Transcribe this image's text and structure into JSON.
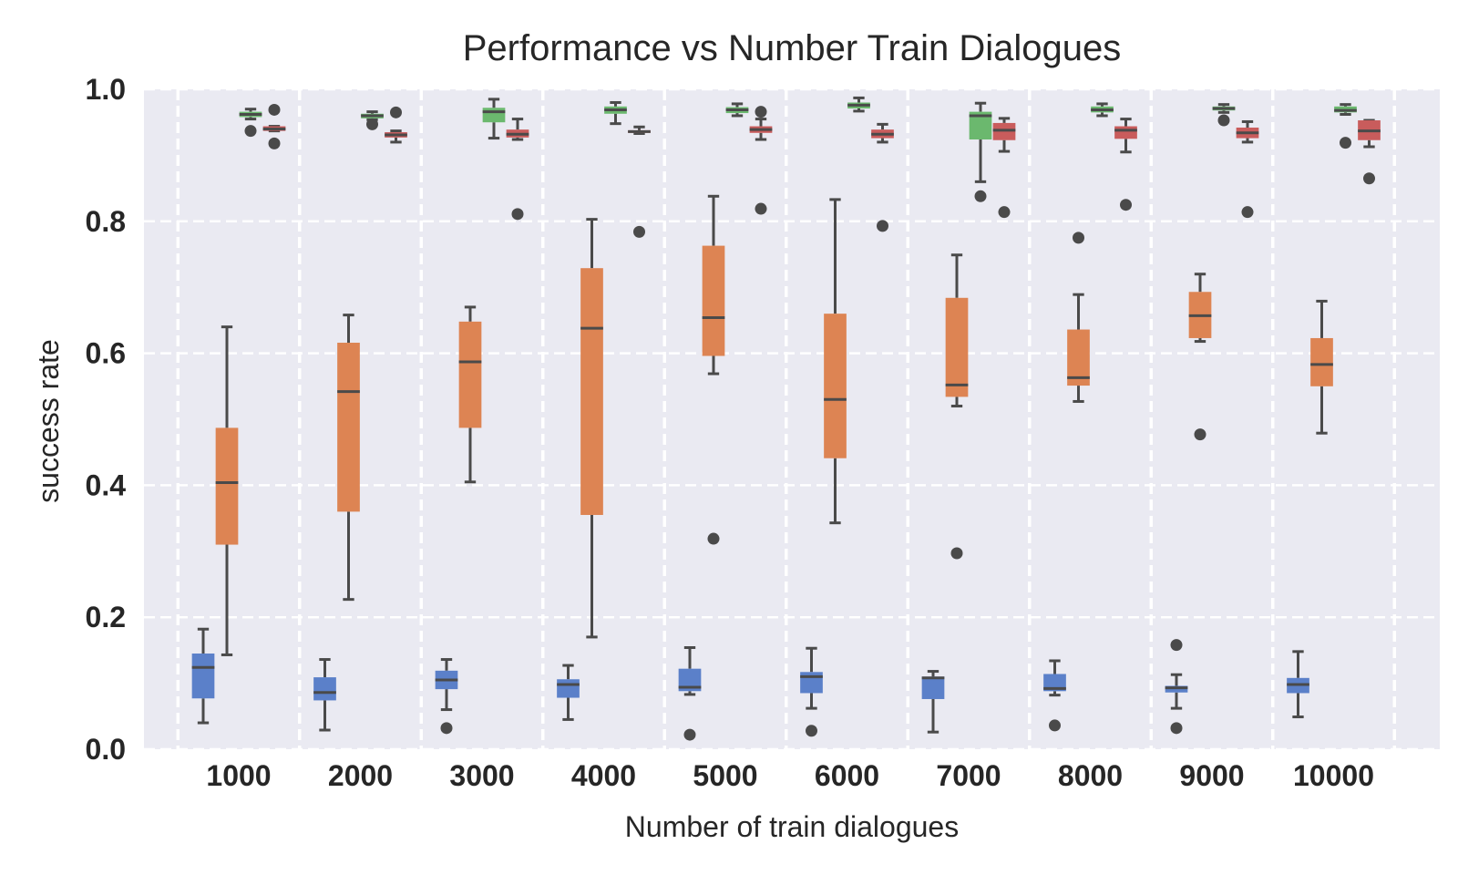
{
  "chart_data": {
    "type": "box",
    "title": "Performance vs Number Train Dialogues",
    "xlabel": "Number of train dialogues",
    "ylabel": "success rate",
    "ylim": [
      0.0,
      1.0
    ],
    "yticks": [
      "0.0",
      "0.2",
      "0.4",
      "0.6",
      "0.8",
      "1.0"
    ],
    "categories": [
      "1000",
      "2000",
      "3000",
      "4000",
      "5000",
      "6000",
      "7000",
      "8000",
      "9000",
      "10000"
    ],
    "grid": true,
    "background": "#eaeaf2",
    "series": [
      {
        "color": "#5b80c9",
        "boxes": [
          {
            "min": 0.04,
            "q1": 0.077,
            "median": 0.124,
            "q3": 0.145,
            "max": 0.182,
            "outliers": []
          },
          {
            "min": 0.029,
            "q1": 0.074,
            "median": 0.086,
            "q3": 0.109,
            "max": 0.136,
            "outliers": []
          },
          {
            "min": 0.06,
            "q1": 0.091,
            "median": 0.105,
            "q3": 0.119,
            "max": 0.136,
            "outliers": [
              0.032
            ]
          },
          {
            "min": 0.045,
            "q1": 0.078,
            "median": 0.098,
            "q3": 0.106,
            "max": 0.127,
            "outliers": []
          },
          {
            "min": 0.083,
            "q1": 0.088,
            "median": 0.094,
            "q3": 0.122,
            "max": 0.154,
            "outliers": [
              0.022
            ]
          },
          {
            "min": 0.062,
            "q1": 0.085,
            "median": 0.11,
            "q3": 0.117,
            "max": 0.153,
            "outliers": [
              0.028
            ]
          },
          {
            "min": 0.026,
            "q1": 0.076,
            "median": 0.108,
            "q3": 0.11,
            "max": 0.118,
            "outliers": []
          },
          {
            "min": 0.082,
            "q1": 0.088,
            "median": 0.092,
            "q3": 0.114,
            "max": 0.134,
            "outliers": [
              0.036
            ]
          },
          {
            "min": 0.062,
            "q1": 0.086,
            "median": 0.093,
            "q3": 0.096,
            "max": 0.113,
            "outliers": [
              0.158,
              0.032
            ]
          },
          {
            "min": 0.049,
            "q1": 0.085,
            "median": 0.098,
            "q3": 0.108,
            "max": 0.148,
            "outliers": []
          }
        ]
      },
      {
        "color": "#dd8453",
        "boxes": [
          {
            "min": 0.143,
            "q1": 0.31,
            "median": 0.404,
            "q3": 0.487,
            "max": 0.64,
            "outliers": []
          },
          {
            "min": 0.227,
            "q1": 0.36,
            "median": 0.542,
            "q3": 0.616,
            "max": 0.658,
            "outliers": []
          },
          {
            "min": 0.405,
            "q1": 0.487,
            "median": 0.587,
            "q3": 0.648,
            "max": 0.67,
            "outliers": []
          },
          {
            "min": 0.17,
            "q1": 0.355,
            "median": 0.638,
            "q3": 0.729,
            "max": 0.803,
            "outliers": []
          },
          {
            "min": 0.569,
            "q1": 0.596,
            "median": 0.654,
            "q3": 0.763,
            "max": 0.838,
            "outliers": [
              0.319
            ]
          },
          {
            "min": 0.343,
            "q1": 0.441,
            "median": 0.53,
            "q3": 0.66,
            "max": 0.833,
            "outliers": []
          },
          {
            "min": 0.52,
            "q1": 0.534,
            "median": 0.552,
            "q3": 0.684,
            "max": 0.749,
            "outliers": [
              0.297
            ]
          },
          {
            "min": 0.527,
            "q1": 0.551,
            "median": 0.563,
            "q3": 0.636,
            "max": 0.689,
            "outliers": [
              0.775
            ]
          },
          {
            "min": 0.618,
            "q1": 0.623,
            "median": 0.657,
            "q3": 0.693,
            "max": 0.72,
            "outliers": [
              0.477
            ]
          },
          {
            "min": 0.479,
            "q1": 0.55,
            "median": 0.583,
            "q3": 0.623,
            "max": 0.679,
            "outliers": []
          }
        ]
      },
      {
        "color": "#6bb86e",
        "boxes": [
          {
            "min": 0.955,
            "q1": 0.958,
            "median": 0.962,
            "q3": 0.966,
            "max": 0.97,
            "outliers": [
              0.937
            ]
          },
          {
            "min": 0.954,
            "q1": 0.956,
            "median": 0.96,
            "q3": 0.963,
            "max": 0.966,
            "outliers": [
              0.947
            ]
          },
          {
            "min": 0.926,
            "q1": 0.95,
            "median": 0.966,
            "q3": 0.972,
            "max": 0.985,
            "outliers": []
          },
          {
            "min": 0.948,
            "q1": 0.963,
            "median": 0.969,
            "q3": 0.974,
            "max": 0.98,
            "outliers": []
          },
          {
            "min": 0.96,
            "q1": 0.964,
            "median": 0.969,
            "q3": 0.973,
            "max": 0.978,
            "outliers": []
          },
          {
            "min": 0.967,
            "q1": 0.971,
            "median": 0.976,
            "q3": 0.98,
            "max": 0.987,
            "outliers": []
          },
          {
            "min": 0.86,
            "q1": 0.924,
            "median": 0.96,
            "q3": 0.966,
            "max": 0.979,
            "outliers": [
              0.838
            ]
          },
          {
            "min": 0.96,
            "q1": 0.965,
            "median": 0.969,
            "q3": 0.974,
            "max": 0.978,
            "outliers": []
          },
          {
            "min": 0.965,
            "q1": 0.968,
            "median": 0.971,
            "q3": 0.974,
            "max": 0.977,
            "outliers": [
              0.953
            ]
          },
          {
            "min": 0.962,
            "q1": 0.965,
            "median": 0.968,
            "q3": 0.974,
            "max": 0.977,
            "outliers": [
              0.919
            ]
          }
        ]
      },
      {
        "color": "#c95c5c",
        "boxes": [
          {
            "min": 0.937,
            "q1": 0.937,
            "median": 0.94,
            "q3": 0.944,
            "max": 0.944,
            "outliers": [
              0.969,
              0.918
            ]
          },
          {
            "min": 0.92,
            "q1": 0.927,
            "median": 0.931,
            "q3": 0.935,
            "max": 0.937,
            "outliers": [
              0.965
            ]
          },
          {
            "min": 0.924,
            "q1": 0.927,
            "median": 0.932,
            "q3": 0.939,
            "max": 0.955,
            "outliers": [
              0.811
            ]
          },
          {
            "min": 0.933,
            "q1": 0.934,
            "median": 0.936,
            "q3": 0.938,
            "max": 0.943,
            "outliers": [
              0.784
            ]
          },
          {
            "min": 0.924,
            "q1": 0.934,
            "median": 0.939,
            "q3": 0.944,
            "max": 0.955,
            "outliers": [
              0.966,
              0.819
            ]
          },
          {
            "min": 0.92,
            "q1": 0.926,
            "median": 0.932,
            "q3": 0.939,
            "max": 0.947,
            "outliers": [
              0.793
            ]
          },
          {
            "min": 0.906,
            "q1": 0.923,
            "median": 0.938,
            "q3": 0.949,
            "max": 0.956,
            "outliers": [
              0.814
            ]
          },
          {
            "min": 0.905,
            "q1": 0.925,
            "median": 0.938,
            "q3": 0.944,
            "max": 0.955,
            "outliers": [
              0.825
            ]
          },
          {
            "min": 0.92,
            "q1": 0.926,
            "median": 0.934,
            "q3": 0.942,
            "max": 0.951,
            "outliers": [
              0.814
            ]
          },
          {
            "min": 0.913,
            "q1": 0.923,
            "median": 0.937,
            "q3": 0.953,
            "max": 0.953,
            "outliers": [
              0.865
            ]
          }
        ]
      }
    ]
  }
}
